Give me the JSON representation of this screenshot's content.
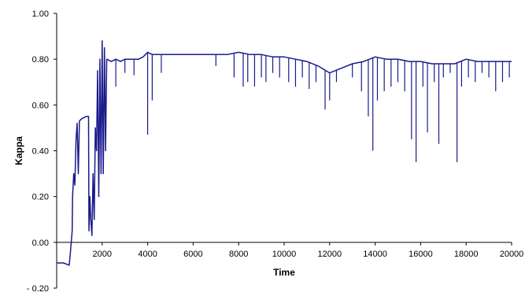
{
  "chart_data": {
    "type": "line",
    "title": "",
    "xlabel": "Time",
    "ylabel": "Kappa",
    "xlim": [
      0,
      20000
    ],
    "ylim": [
      -0.2,
      1.0
    ],
    "x_ticks": [
      2000,
      4000,
      6000,
      8000,
      10000,
      12000,
      14000,
      16000,
      18000,
      20000
    ],
    "x_tick_labels": [
      "2000",
      "4000",
      "6000",
      "8000",
      "10000",
      "12000",
      "14000",
      "16000",
      "18000",
      "20000"
    ],
    "y_ticks": [
      -0.2,
      0.0,
      0.2,
      0.4,
      0.6,
      0.8,
      1.0
    ],
    "y_tick_labels": [
      "- 0.20",
      "0.00",
      "0.20",
      "0.40",
      "0.60",
      "0.80",
      "1.00"
    ],
    "grid": false,
    "legend": "none",
    "series_color": "#1a1a8c",
    "series": [
      {
        "name": "",
        "points": [
          [
            0,
            -0.09
          ],
          [
            300,
            -0.09
          ],
          [
            550,
            -0.1
          ],
          [
            600,
            -0.05
          ],
          [
            680,
            0.05
          ],
          [
            700,
            0.2
          ],
          [
            750,
            0.3
          ],
          [
            800,
            0.25
          ],
          [
            850,
            0.45
          ],
          [
            900,
            0.52
          ],
          [
            950,
            0.3
          ],
          [
            1000,
            0.53
          ],
          [
            1100,
            0.54
          ],
          [
            1300,
            0.55
          ],
          [
            1400,
            0.55
          ],
          [
            1420,
            0.05
          ],
          [
            1460,
            0.2
          ],
          [
            1500,
            0.1
          ],
          [
            1550,
            0.03
          ],
          [
            1600,
            0.3
          ],
          [
            1650,
            0.1
          ],
          [
            1700,
            0.5
          ],
          [
            1750,
            0.4
          ],
          [
            1800,
            0.75
          ],
          [
            1850,
            0.2
          ],
          [
            1900,
            0.8
          ],
          [
            1950,
            0.3
          ],
          [
            2000,
            0.88
          ],
          [
            2050,
            0.3
          ],
          [
            2100,
            0.85
          ],
          [
            2150,
            0.4
          ],
          [
            2200,
            0.8
          ],
          [
            2400,
            0.79
          ],
          [
            2600,
            0.8
          ],
          [
            2800,
            0.79
          ],
          [
            3000,
            0.8
          ],
          [
            3200,
            0.8
          ],
          [
            3400,
            0.8
          ],
          [
            3600,
            0.8
          ],
          [
            3800,
            0.81
          ],
          [
            4000,
            0.83
          ],
          [
            4200,
            0.82
          ],
          [
            4500,
            0.82
          ],
          [
            5000,
            0.82
          ],
          [
            5500,
            0.82
          ],
          [
            6000,
            0.82
          ],
          [
            6500,
            0.82
          ],
          [
            7000,
            0.82
          ],
          [
            7500,
            0.82
          ],
          [
            8000,
            0.83
          ],
          [
            8500,
            0.82
          ],
          [
            9000,
            0.82
          ],
          [
            9500,
            0.81
          ],
          [
            10000,
            0.81
          ],
          [
            10500,
            0.8
          ],
          [
            11000,
            0.79
          ],
          [
            11500,
            0.77
          ],
          [
            12000,
            0.74
          ],
          [
            12500,
            0.76
          ],
          [
            13000,
            0.78
          ],
          [
            13500,
            0.79
          ],
          [
            14000,
            0.81
          ],
          [
            14500,
            0.8
          ],
          [
            15000,
            0.8
          ],
          [
            15500,
            0.79
          ],
          [
            16000,
            0.79
          ],
          [
            16500,
            0.78
          ],
          [
            17000,
            0.78
          ],
          [
            17500,
            0.78
          ],
          [
            18000,
            0.8
          ],
          [
            18500,
            0.79
          ],
          [
            19000,
            0.79
          ],
          [
            19500,
            0.79
          ],
          [
            20000,
            0.79
          ]
        ],
        "dips": [
          [
            4000,
            0.47
          ],
          [
            4200,
            0.62
          ],
          [
            2600,
            0.68
          ],
          [
            3000,
            0.74
          ],
          [
            3400,
            0.73
          ],
          [
            4600,
            0.74
          ],
          [
            7000,
            0.77
          ],
          [
            7800,
            0.72
          ],
          [
            8200,
            0.68
          ],
          [
            8400,
            0.7
          ],
          [
            8700,
            0.68
          ],
          [
            9000,
            0.72
          ],
          [
            9200,
            0.7
          ],
          [
            9500,
            0.74
          ],
          [
            9800,
            0.72
          ],
          [
            10200,
            0.7
          ],
          [
            10500,
            0.68
          ],
          [
            10800,
            0.72
          ],
          [
            11100,
            0.67
          ],
          [
            11400,
            0.7
          ],
          [
            11800,
            0.58
          ],
          [
            12000,
            0.62
          ],
          [
            12300,
            0.7
          ],
          [
            13000,
            0.72
          ],
          [
            13400,
            0.66
          ],
          [
            13700,
            0.55
          ],
          [
            13900,
            0.4
          ],
          [
            14100,
            0.62
          ],
          [
            14400,
            0.66
          ],
          [
            14700,
            0.68
          ],
          [
            15000,
            0.7
          ],
          [
            15300,
            0.66
          ],
          [
            15600,
            0.45
          ],
          [
            15800,
            0.35
          ],
          [
            16100,
            0.68
          ],
          [
            16300,
            0.48
          ],
          [
            16600,
            0.7
          ],
          [
            16800,
            0.43
          ],
          [
            17000,
            0.72
          ],
          [
            17300,
            0.74
          ],
          [
            17600,
            0.35
          ],
          [
            17800,
            0.68
          ],
          [
            18100,
            0.72
          ],
          [
            18400,
            0.7
          ],
          [
            18700,
            0.74
          ],
          [
            19000,
            0.72
          ],
          [
            19300,
            0.66
          ],
          [
            19600,
            0.7
          ],
          [
            19900,
            0.72
          ]
        ]
      }
    ]
  }
}
